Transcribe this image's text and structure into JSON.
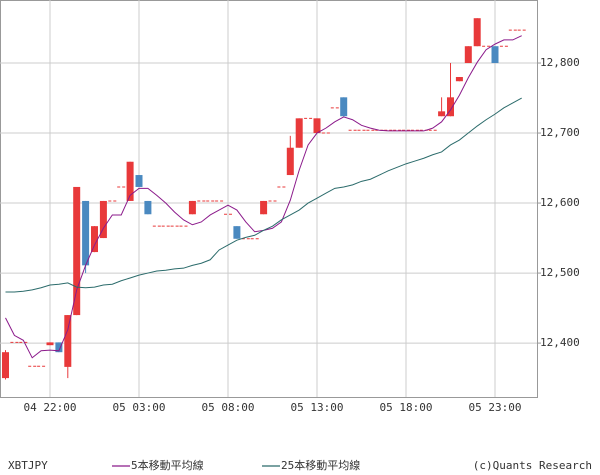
{
  "chart_data": {
    "type": "candlestick",
    "title": "XBTJPY",
    "credit": "(c)Quants Research",
    "categories": [
      null,
      null,
      null,
      null,
      null,
      "04 22:00",
      null,
      null,
      null,
      null,
      null,
      null,
      null,
      null,
      null,
      "05 03:00",
      null,
      null,
      null,
      null,
      null,
      null,
      null,
      null,
      null,
      "05 08:00",
      null,
      null,
      null,
      null,
      null,
      null,
      null,
      null,
      null,
      "05 13:00",
      null,
      null,
      null,
      null,
      null,
      null,
      null,
      null,
      null,
      "05 18:00",
      null,
      null,
      null,
      null,
      null,
      null,
      null,
      null,
      null,
      "05 23:00",
      null,
      null,
      null
    ],
    "ohlc": {
      "up_color": "#e8393a",
      "down_color": "#4a89c0",
      "open": [
        12350,
        12401,
        12401,
        12367,
        12367,
        12397,
        12401,
        12366,
        12440,
        12603,
        12530,
        12550,
        12603,
        12623,
        12603,
        12640,
        12603,
        12567,
        12567,
        12567,
        12567,
        12584,
        12603,
        12603,
        12603,
        12584,
        12567,
        12549,
        12549,
        12584,
        12603,
        12623,
        12640,
        12679,
        12721,
        12700,
        12700,
        12736,
        12751,
        12704,
        12704,
        12704,
        12704,
        12704,
        12704,
        12704,
        12704,
        12704,
        12704,
        12724,
        12724,
        12774,
        12800,
        12824,
        12824,
        12824,
        12824,
        12847,
        12847
      ],
      "high": [
        12390,
        12401,
        12401,
        12367,
        12367,
        12401,
        12401,
        12440,
        12623,
        12603,
        12567,
        12603,
        12603,
        12623,
        12659,
        12640,
        12603,
        12567,
        12567,
        12567,
        12567,
        12603,
        12603,
        12603,
        12603,
        12584,
        12567,
        12549,
        12549,
        12603,
        12603,
        12623,
        12696,
        12721,
        12721,
        12721,
        12700,
        12736,
        12751,
        12704,
        12704,
        12704,
        12704,
        12704,
        12704,
        12704,
        12704,
        12704,
        12704,
        12751,
        12800,
        12780,
        12824,
        12864,
        12824,
        12824,
        12824,
        12847,
        12847
      ],
      "low": [
        12348,
        12401,
        12401,
        12367,
        12367,
        12397,
        12387,
        12350,
        12440,
        12500,
        12530,
        12550,
        12603,
        12623,
        12603,
        12623,
        12584,
        12567,
        12567,
        12567,
        12567,
        12584,
        12603,
        12603,
        12603,
        12584,
        12549,
        12549,
        12549,
        12584,
        12603,
        12623,
        12640,
        12679,
        12721,
        12700,
        12700,
        12736,
        12724,
        12704,
        12704,
        12704,
        12704,
        12704,
        12704,
        12704,
        12704,
        12704,
        12704,
        12724,
        12724,
        12774,
        12800,
        12824,
        12824,
        12800,
        12824,
        12847,
        12847
      ],
      "close": [
        12387,
        12401,
        12401,
        12367,
        12367,
        12401,
        12387,
        12440,
        12623,
        12511,
        12567,
        12603,
        12603,
        12623,
        12659,
        12623,
        12584,
        12567,
        12567,
        12567,
        12567,
        12603,
        12603,
        12603,
        12603,
        12584,
        12549,
        12549,
        12549,
        12603,
        12603,
        12623,
        12679,
        12721,
        12721,
        12721,
        12700,
        12736,
        12724,
        12704,
        12704,
        12704,
        12704,
        12704,
        12704,
        12704,
        12704,
        12704,
        12704,
        12731,
        12751,
        12780,
        12824,
        12864,
        12824,
        12800,
        12824,
        12847,
        12847
      ]
    },
    "series": [
      {
        "name": "5本移動平均線",
        "color": "#8b1a8b",
        "values": [
          12436,
          12411,
          12404,
          12379,
          12389,
          12390,
          12389,
          12419,
          12476,
          12511,
          12540,
          12564,
          12583,
          12583,
          12611,
          12621,
          12621,
          12611,
          12600,
          12587,
          12576,
          12569,
          12573,
          12583,
          12590,
          12597,
          12590,
          12573,
          12559,
          12561,
          12564,
          12573,
          12604,
          12647,
          12683,
          12700,
          12707,
          12716,
          12723,
          12719,
          12711,
          12707,
          12704,
          12703,
          12703,
          12703,
          12703,
          12703,
          12707,
          12716,
          12733,
          12754,
          12779,
          12801,
          12819,
          12827,
          12833,
          12833,
          12839
        ]
      },
      {
        "name": "25本移動平均線",
        "color": "#2b6b6b",
        "values": [
          12473,
          12473,
          12474,
          12476,
          12479,
          12483,
          12484,
          12486,
          12480,
          12479,
          12480,
          12483,
          12484,
          12489,
          12493,
          12497,
          12500,
          12503,
          12504,
          12506,
          12507,
          12511,
          12514,
          12519,
          12533,
          12540,
          12547,
          12551,
          12554,
          12561,
          12567,
          12576,
          12583,
          12590,
          12600,
          12607,
          12614,
          12621,
          12623,
          12626,
          12631,
          12634,
          12640,
          12646,
          12651,
          12656,
          12660,
          12664,
          12669,
          12673,
          12683,
          12690,
          12700,
          12710,
          12719,
          12727,
          12736,
          12743,
          12750
        ]
      }
    ],
    "ylim": [
      12323,
      12890
    ],
    "yticks": [
      {
        "value": 12400,
        "label": "12,400"
      },
      {
        "value": 12500,
        "label": "12,500"
      },
      {
        "value": 12600,
        "label": "12,600"
      },
      {
        "value": 12700,
        "label": "12,700"
      },
      {
        "value": 12800,
        "label": "12,800"
      }
    ],
    "grid": true
  }
}
